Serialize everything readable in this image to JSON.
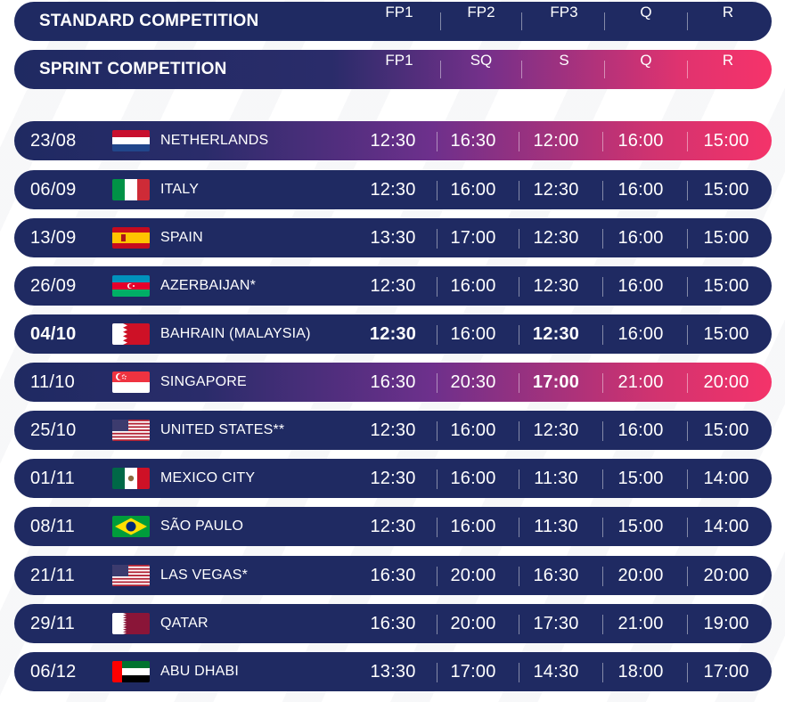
{
  "header_standard": {
    "title": "STANDARD COMPETITION",
    "sessions": [
      "FP1",
      "FP2",
      "FP3",
      "Q",
      "R"
    ]
  },
  "header_sprint": {
    "title": "SPRINT COMPETITION",
    "sessions": [
      "FP1",
      "SQ",
      "S",
      "Q",
      "R"
    ]
  },
  "rows": [
    {
      "date": "23/08",
      "country": "NETHERLANDS",
      "flag": "netherlands-flag-icon",
      "highlight": true,
      "times": [
        "12:30",
        "16:30",
        "12:00",
        "16:00",
        "15:00"
      ]
    },
    {
      "date": "06/09",
      "country": "ITALY",
      "flag": "italy-flag-icon",
      "highlight": false,
      "times": [
        "12:30",
        "16:00",
        "12:30",
        "16:00",
        "15:00"
      ]
    },
    {
      "date": "13/09",
      "country": "SPAIN",
      "flag": "spain-flag-icon",
      "highlight": false,
      "times": [
        "13:30",
        "17:00",
        "12:30",
        "16:00",
        "15:00"
      ]
    },
    {
      "date": "26/09",
      "country": "AZERBAIJAN*",
      "flag": "azerbaijan-flag-icon",
      "highlight": false,
      "times": [
        "12:30",
        "16:00",
        "12:30",
        "16:00",
        "15:00"
      ]
    },
    {
      "date": "04/10",
      "country": "BAHRAIN (MALAYSIA)",
      "flag": "bahrain-flag-icon",
      "highlight": false,
      "times": [
        "12:30",
        "16:00",
        "12:30",
        "16:00",
        "15:00"
      ]
    },
    {
      "date": "11/10",
      "country": "SINGAPORE",
      "flag": "singapore-flag-icon",
      "highlight": true,
      "times": [
        "16:30",
        "20:30",
        "17:00",
        "21:00",
        "20:00"
      ]
    },
    {
      "date": "25/10",
      "country": "UNITED STATES**",
      "flag": "usa-flag-icon",
      "highlight": false,
      "times": [
        "12:30",
        "16:00",
        "12:30",
        "16:00",
        "15:00"
      ]
    },
    {
      "date": "01/11",
      "country": "MEXICO CITY",
      "flag": "mexico-flag-icon",
      "highlight": false,
      "times": [
        "12:30",
        "16:00",
        "11:30",
        "15:00",
        "14:00"
      ]
    },
    {
      "date": "08/11",
      "country": "SÃO PAULO",
      "flag": "brazil-flag-icon",
      "highlight": false,
      "times": [
        "12:30",
        "16:00",
        "11:30",
        "15:00",
        "14:00"
      ]
    },
    {
      "date": "21/11",
      "country": "LAS VEGAS*",
      "flag": "usa-flag-icon",
      "highlight": false,
      "times": [
        "16:30",
        "20:00",
        "16:30",
        "20:00",
        "20:00"
      ]
    },
    {
      "date": "29/11",
      "country": "QATAR",
      "flag": "qatar-flag-icon",
      "highlight": false,
      "times": [
        "16:30",
        "20:00",
        "17:30",
        "21:00",
        "19:00"
      ]
    },
    {
      "date": "06/12",
      "country": "ABU DHABI",
      "flag": "uae-flag-icon",
      "highlight": false,
      "times": [
        "13:30",
        "17:00",
        "14:30",
        "18:00",
        "17:00"
      ]
    }
  ]
}
